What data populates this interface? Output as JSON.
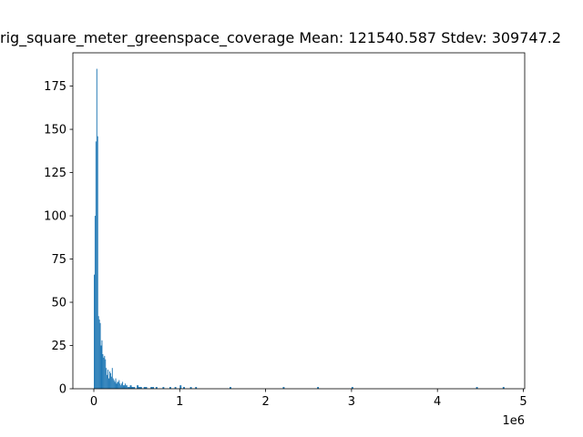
{
  "chart_data": {
    "type": "histogram",
    "title": "rig_square_meter_greenspace_coverage  Mean: 121540.587  Stdev: 309747.2",
    "x_offset_label": "1e6",
    "color": "#1f77b4",
    "bins": [
      0,
      10000,
      20000,
      30000,
      40000,
      50000,
      60000,
      70000,
      80000,
      90000,
      100000,
      110000,
      120000,
      130000,
      140000,
      150000,
      160000,
      170000,
      180000,
      190000,
      200000,
      210000,
      220000,
      230000,
      240000,
      250000,
      260000,
      270000,
      280000,
      290000,
      300000,
      310000,
      320000,
      330000,
      340000,
      350000,
      360000,
      370000,
      380000,
      390000,
      400000,
      420000,
      440000,
      460000,
      480000,
      500000,
      520000,
      540000,
      560000,
      580000,
      600000,
      620000,
      640000,
      660000,
      680000,
      700000,
      720000,
      740000,
      760000,
      780000,
      800000,
      820000,
      840000,
      860000,
      880000,
      900000,
      920000,
      940000,
      960000,
      980000,
      1000000,
      1020000,
      1040000,
      1060000,
      1080000,
      1100000,
      1120000,
      1140000,
      1160000,
      1180000,
      1200000,
      1580000,
      1600000,
      2200000,
      2220000,
      2600000,
      2620000,
      3000000,
      3020000,
      4450000,
      4470000,
      4760000,
      4780000
    ],
    "values": [
      66,
      100,
      143,
      185,
      146,
      42,
      40,
      38,
      25,
      28,
      20,
      18,
      19,
      17,
      12,
      8,
      11,
      6,
      10,
      9,
      7,
      12,
      6,
      5,
      4,
      6,
      3,
      4,
      4,
      5,
      3,
      2,
      3,
      4,
      2,
      2,
      3,
      2,
      2,
      1,
      1,
      2,
      1,
      1,
      0,
      2,
      1,
      1,
      0,
      1,
      1,
      0,
      0,
      1,
      1,
      0,
      1,
      0,
      0,
      0,
      1,
      0,
      0,
      0,
      1,
      0,
      0,
      1,
      0,
      0,
      2,
      0,
      1,
      0,
      0,
      0,
      1,
      0,
      0,
      1,
      0,
      1,
      0,
      1,
      0,
      1,
      0,
      1,
      0,
      1,
      0,
      1
    ],
    "xlim": [
      -244000,
      5016000
    ],
    "xticks": [
      0,
      {
        "value": 1000000,
        "label": "1"
      },
      {
        "value": 2000000,
        "label": "2"
      },
      {
        "value": 3000000,
        "label": "3"
      },
      {
        "value": 4000000,
        "label": "4"
      },
      {
        "value": 5000000,
        "label": "5"
      }
    ],
    "ylim": [
      0,
      194.25
    ],
    "yticks": [
      0,
      25,
      50,
      75,
      100,
      125,
      150,
      175
    ]
  }
}
